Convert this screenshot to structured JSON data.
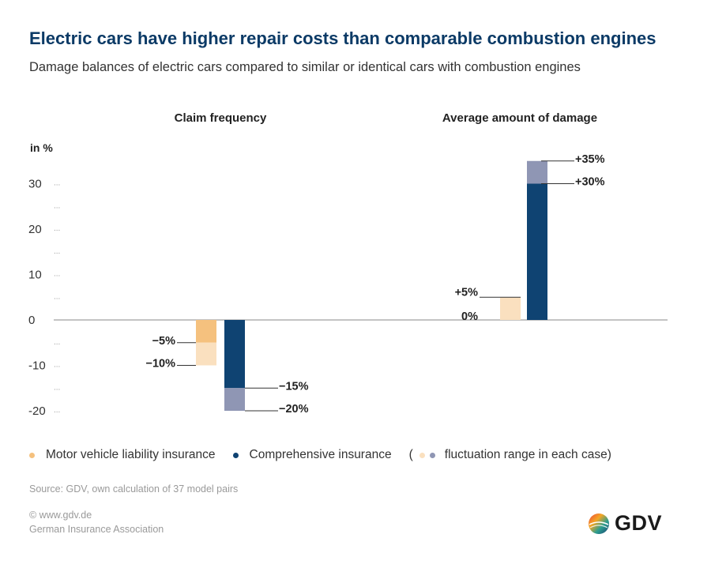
{
  "title": "Electric cars have higher repair costs than comparable combustion engines",
  "subtitle": "Damage balances of electric cars compared to similar or identical cars with combustion engines",
  "chart_data": {
    "type": "bar",
    "categories": [
      "Claim frequency",
      "Average amount of damage"
    ],
    "ylabel": "in %",
    "ylim": [
      -20,
      30
    ],
    "yticks": [
      {
        "value": 30,
        "label": "30"
      },
      {
        "value": 20,
        "label": "20"
      },
      {
        "value": 10,
        "label": "10"
      },
      {
        "value": 0,
        "label": "0"
      },
      {
        "value": -10,
        "label": "-10"
      },
      {
        "value": -20,
        "label": "-20"
      }
    ],
    "series": [
      {
        "name": "Motor vehicle liability insurance",
        "color": "#f5c17e",
        "range_color": "#fae0bf",
        "ranges": [
          [
            -5,
            -10
          ],
          [
            0,
            5
          ]
        ],
        "labels": [
          [
            "−5%",
            "−10%"
          ],
          [
            "0%",
            "+5%"
          ]
        ]
      },
      {
        "name": "Comprehensive insurance",
        "color": "#0f4372",
        "range_color": "#8f96b4",
        "ranges": [
          [
            -15,
            -20
          ],
          [
            30,
            35
          ]
        ],
        "labels": [
          [
            "−15%",
            "−20%"
          ],
          [
            "+30%",
            "+35%"
          ]
        ]
      }
    ],
    "legend_range_label": "fluctuation range in each case)",
    "legend_range_prefix": "(",
    "grid": false,
    "legend_position": "bottom"
  },
  "source": "Source: GDV, own calculation of 37 model pairs",
  "copyright": "© www.gdv.de",
  "organization": "German Insurance Association",
  "logo_text": "GDV"
}
